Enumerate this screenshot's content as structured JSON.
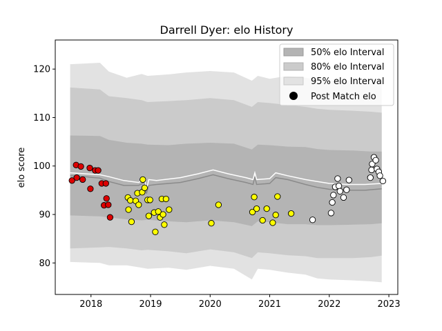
{
  "chart_data": {
    "type": "scatter",
    "title": "Darrell Dyer: elo History",
    "xlabel": "",
    "ylabel": "elo score",
    "xlim": [
      2017.4,
      2023.15
    ],
    "ylim": [
      73.5,
      126
    ],
    "x_ticks": [
      2018,
      2019,
      2020,
      2021,
      2022,
      2023
    ],
    "y_ticks": [
      80,
      90,
      100,
      110,
      120
    ],
    "grid": false,
    "legend_position": "top-right",
    "colors": {
      "band95": "#e2e2e2",
      "band80": "#cbcbcb",
      "band50": "#b4b4b4",
      "median_line": "#8a8a8a",
      "mean_line": "#ffffff",
      "legend_marker": "#000000"
    },
    "series": [
      {
        "name": "50% elo Interval",
        "kind": "band"
      },
      {
        "name": "80% elo Interval",
        "kind": "band"
      },
      {
        "name": "95% elo Interval",
        "kind": "band"
      },
      {
        "name": "Post Match elo",
        "kind": "points"
      }
    ],
    "bands": {
      "x": [
        2017.65,
        2018.15,
        2018.3,
        2018.6,
        2018.85,
        2018.95,
        2019.3,
        2019.6,
        2020.0,
        2020.4,
        2020.7,
        2020.8,
        2021.0,
        2021.3,
        2021.6,
        2021.8,
        2022.0,
        2022.4,
        2022.7,
        2022.88
      ],
      "p95_hi": [
        121.0,
        121.3,
        119.5,
        118.2,
        119.0,
        118.6,
        118.9,
        119.3,
        119.6,
        119.3,
        117.6,
        118.6,
        118.0,
        118.6,
        118.2,
        117.8,
        117.6,
        117.5,
        117.0,
        116.8
      ],
      "p95_lo": [
        80.2,
        80.0,
        79.5,
        79.5,
        79.0,
        78.8,
        79.0,
        78.6,
        79.4,
        78.8,
        76.6,
        78.8,
        78.6,
        78.0,
        77.6,
        76.8,
        76.6,
        76.4,
        76.2,
        76.0
      ],
      "p80_hi": [
        116.2,
        115.8,
        114.4,
        114.0,
        113.6,
        113.2,
        113.4,
        113.6,
        114.0,
        113.6,
        112.2,
        113.2,
        113.0,
        112.6,
        112.2,
        111.8,
        111.6,
        111.4,
        111.2,
        111.0
      ],
      "p80_lo": [
        83.0,
        83.2,
        83.3,
        83.0,
        82.6,
        82.7,
        82.4,
        82.0,
        82.8,
        82.2,
        81.0,
        82.2,
        82.0,
        81.6,
        81.4,
        81.0,
        81.0,
        81.0,
        81.2,
        81.5
      ],
      "p50_hi": [
        106.3,
        106.2,
        105.4,
        104.8,
        104.6,
        104.4,
        104.3,
        104.6,
        104.8,
        104.6,
        103.4,
        104.4,
        104.3,
        104.0,
        103.9,
        103.5,
        103.3,
        103.2,
        103.0,
        103.0
      ],
      "p50_lo": [
        89.8,
        89.6,
        89.4,
        89.0,
        88.8,
        88.9,
        88.6,
        88.4,
        88.8,
        88.4,
        87.6,
        88.6,
        88.4,
        88.0,
        88.0,
        87.8,
        87.8,
        87.9,
        88.0,
        88.2
      ]
    },
    "median_line": {
      "x": [
        2017.65,
        2017.9,
        2018.15,
        2018.3,
        2018.55,
        2018.8,
        2018.9,
        2018.93,
        2018.97,
        2019.1,
        2019.5,
        2019.8,
        2020.05,
        2020.3,
        2020.6,
        2020.72,
        2020.75,
        2020.78,
        2021.0,
        2021.1,
        2021.3,
        2021.6,
        2021.8,
        2022.0,
        2022.3,
        2022.6,
        2022.88
      ],
      "y": [
        98.0,
        97.8,
        97.5,
        96.8,
        96.0,
        96.0,
        96.6,
        94.3,
        96.0,
        96.2,
        96.6,
        97.4,
        98.2,
        97.4,
        96.6,
        96.2,
        97.8,
        96.2,
        96.4,
        97.6,
        97.2,
        96.2,
        95.6,
        95.2,
        95.0,
        95.0,
        95.3
      ]
    },
    "mean_line": {
      "x": [
        2017.65,
        2017.9,
        2018.15,
        2018.3,
        2018.55,
        2018.8,
        2018.9,
        2018.93,
        2018.97,
        2019.1,
        2019.5,
        2019.8,
        2020.05,
        2020.3,
        2020.6,
        2020.72,
        2020.75,
        2020.78,
        2021.0,
        2021.1,
        2021.3,
        2021.6,
        2021.8,
        2022.0,
        2022.3,
        2022.6,
        2022.88
      ],
      "y": [
        98.6,
        98.4,
        98.2,
        97.8,
        97.0,
        96.6,
        97.4,
        95.0,
        97.2,
        97.0,
        97.6,
        98.4,
        99.2,
        98.4,
        97.6,
        97.2,
        98.6,
        97.2,
        97.4,
        98.6,
        98.0,
        97.2,
        96.8,
        96.4,
        96.2,
        96.2,
        96.4
      ]
    },
    "points": [
      {
        "x": 2017.68,
        "y": 97.0,
        "color": "#dd0000"
      },
      {
        "x": 2017.75,
        "y": 100.2,
        "color": "#dd0000"
      },
      {
        "x": 2017.76,
        "y": 97.6,
        "color": "#dd0000"
      },
      {
        "x": 2017.83,
        "y": 99.9,
        "color": "#dd0000"
      },
      {
        "x": 2017.86,
        "y": 97.2,
        "color": "#dd0000"
      },
      {
        "x": 2017.98,
        "y": 99.6,
        "color": "#dd0000"
      },
      {
        "x": 2017.99,
        "y": 95.3,
        "color": "#dd0000"
      },
      {
        "x": 2018.07,
        "y": 99.1,
        "color": "#dd0000"
      },
      {
        "x": 2018.12,
        "y": 99.1,
        "color": "#dd0000"
      },
      {
        "x": 2018.18,
        "y": 96.4,
        "color": "#dd0000"
      },
      {
        "x": 2018.22,
        "y": 91.9,
        "color": "#dd0000"
      },
      {
        "x": 2018.25,
        "y": 96.4,
        "color": "#dd0000"
      },
      {
        "x": 2018.26,
        "y": 93.3,
        "color": "#dd0000"
      },
      {
        "x": 2018.29,
        "y": 92.0,
        "color": "#dd0000"
      },
      {
        "x": 2018.32,
        "y": 89.4,
        "color": "#dd0000"
      },
      {
        "x": 2018.62,
        "y": 93.5,
        "color": "#ffff00"
      },
      {
        "x": 2018.63,
        "y": 91.0,
        "color": "#ffff00"
      },
      {
        "x": 2018.66,
        "y": 92.9,
        "color": "#ffff00"
      },
      {
        "x": 2018.68,
        "y": 88.5,
        "color": "#ffff00"
      },
      {
        "x": 2018.75,
        "y": 92.8,
        "color": "#ffff00"
      },
      {
        "x": 2018.78,
        "y": 94.4,
        "color": "#ffff00"
      },
      {
        "x": 2018.8,
        "y": 92.0,
        "color": "#ffff00"
      },
      {
        "x": 2018.86,
        "y": 94.6,
        "color": "#ffff00"
      },
      {
        "x": 2018.87,
        "y": 97.2,
        "color": "#ffff00"
      },
      {
        "x": 2018.9,
        "y": 95.5,
        "color": "#ffff00"
      },
      {
        "x": 2018.95,
        "y": 93.0,
        "color": "#ffff00"
      },
      {
        "x": 2018.97,
        "y": 89.7,
        "color": "#ffff00"
      },
      {
        "x": 2018.99,
        "y": 93.0,
        "color": "#ffff00"
      },
      {
        "x": 2019.06,
        "y": 90.4,
        "color": "#ffff00"
      },
      {
        "x": 2019.08,
        "y": 86.4,
        "color": "#ffff00"
      },
      {
        "x": 2019.13,
        "y": 90.6,
        "color": "#ffff00"
      },
      {
        "x": 2019.16,
        "y": 89.4,
        "color": "#ffff00"
      },
      {
        "x": 2019.19,
        "y": 93.2,
        "color": "#ffff00"
      },
      {
        "x": 2019.21,
        "y": 90.0,
        "color": "#ffff00"
      },
      {
        "x": 2019.23,
        "y": 87.9,
        "color": "#ffff00"
      },
      {
        "x": 2019.26,
        "y": 93.2,
        "color": "#ffff00"
      },
      {
        "x": 2019.31,
        "y": 91.0,
        "color": "#ffff00"
      },
      {
        "x": 2020.02,
        "y": 88.2,
        "color": "#ffff00"
      },
      {
        "x": 2020.14,
        "y": 92.0,
        "color": "#ffff00"
      },
      {
        "x": 2020.71,
        "y": 90.5,
        "color": "#ffff00"
      },
      {
        "x": 2020.74,
        "y": 93.6,
        "color": "#ffff00"
      },
      {
        "x": 2020.78,
        "y": 91.2,
        "color": "#ffff00"
      },
      {
        "x": 2020.88,
        "y": 88.8,
        "color": "#ffff00"
      },
      {
        "x": 2020.95,
        "y": 91.2,
        "color": "#ffff00"
      },
      {
        "x": 2021.05,
        "y": 88.3,
        "color": "#ffff00"
      },
      {
        "x": 2021.1,
        "y": 89.9,
        "color": "#ffff00"
      },
      {
        "x": 2021.13,
        "y": 93.7,
        "color": "#ffff00"
      },
      {
        "x": 2021.36,
        "y": 90.2,
        "color": "#ffff00"
      },
      {
        "x": 2021.72,
        "y": 88.9,
        "color": "#ffffff"
      },
      {
        "x": 2022.03,
        "y": 90.3,
        "color": "#ffffff"
      },
      {
        "x": 2022.05,
        "y": 92.5,
        "color": "#ffffff"
      },
      {
        "x": 2022.07,
        "y": 94.0,
        "color": "#ffffff"
      },
      {
        "x": 2022.1,
        "y": 95.7,
        "color": "#ffffff"
      },
      {
        "x": 2022.14,
        "y": 97.4,
        "color": "#ffffff"
      },
      {
        "x": 2022.16,
        "y": 95.9,
        "color": "#ffffff"
      },
      {
        "x": 2022.18,
        "y": 94.8,
        "color": "#ffffff"
      },
      {
        "x": 2022.24,
        "y": 93.5,
        "color": "#ffffff"
      },
      {
        "x": 2022.29,
        "y": 95.1,
        "color": "#ffffff"
      },
      {
        "x": 2022.33,
        "y": 97.1,
        "color": "#ffffff"
      },
      {
        "x": 2022.69,
        "y": 97.6,
        "color": "#ffffff"
      },
      {
        "x": 2022.71,
        "y": 99.2,
        "color": "#ffffff"
      },
      {
        "x": 2022.72,
        "y": 100.4,
        "color": "#ffffff"
      },
      {
        "x": 2022.75,
        "y": 101.8,
        "color": "#ffffff"
      },
      {
        "x": 2022.78,
        "y": 101.2,
        "color": "#ffffff"
      },
      {
        "x": 2022.8,
        "y": 99.4,
        "color": "#ffffff"
      },
      {
        "x": 2022.83,
        "y": 98.8,
        "color": "#ffffff"
      },
      {
        "x": 2022.85,
        "y": 98.0,
        "color": "#ffffff"
      },
      {
        "x": 2022.9,
        "y": 96.9,
        "color": "#ffffff"
      }
    ]
  }
}
